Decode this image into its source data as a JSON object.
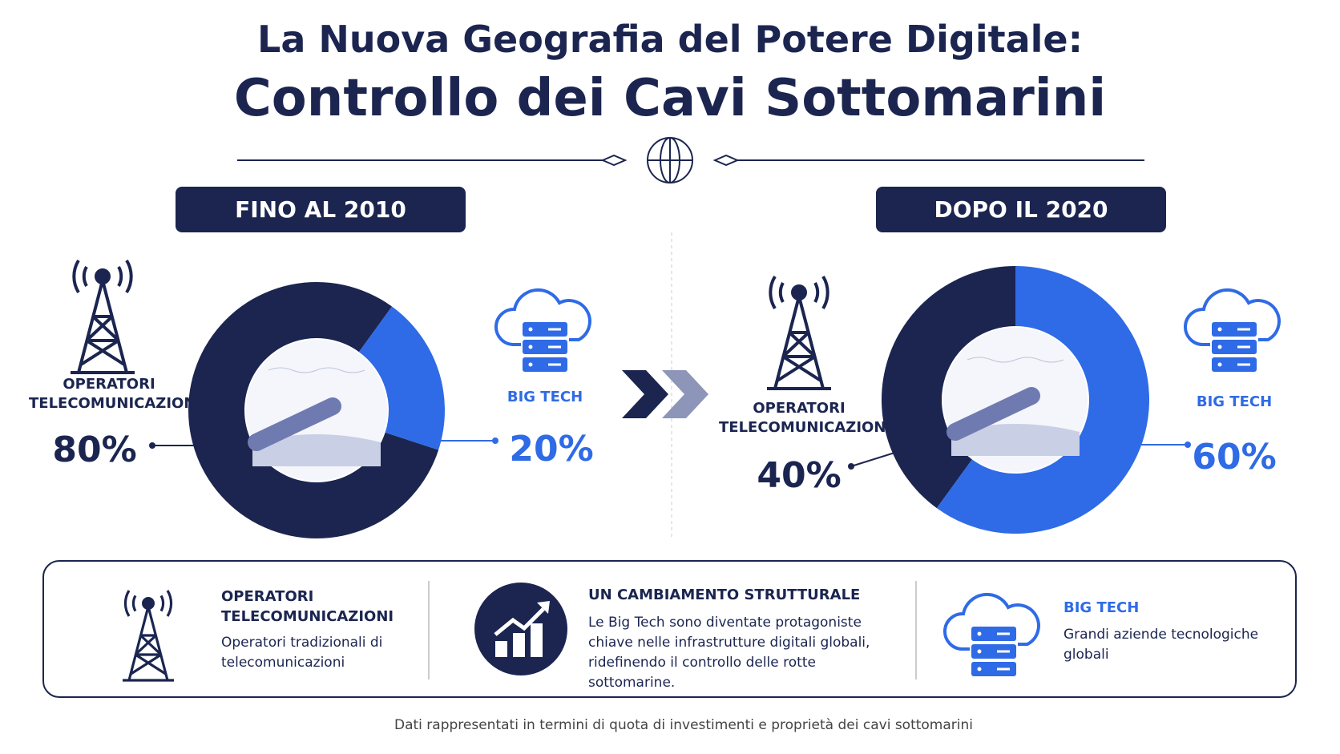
{
  "header": {
    "title": "La Nuova Geografia del Potere Digitale:",
    "subtitle": "Controllo dei Cavi Sottomarini"
  },
  "chart_data": [
    {
      "type": "pie",
      "title": "FINO AL 2010",
      "categories": [
        "OPERATORI TELECOMUNICAZIONI",
        "BIG TECH"
      ],
      "values": [
        80,
        20
      ],
      "value_labels": [
        "80%",
        "20%"
      ],
      "colors": [
        "#1b2550",
        "#2f6be6"
      ]
    },
    {
      "type": "pie",
      "title": "DOPO IL 2020",
      "categories": [
        "OPERATORI TELECOMUNICAZIONI",
        "BIG TECH"
      ],
      "values": [
        40,
        60
      ],
      "value_labels": [
        "40%",
        "60%"
      ],
      "colors": [
        "#1b2550",
        "#2f6be6"
      ]
    }
  ],
  "panel": {
    "items": [
      {
        "title": "OPERATORI TELECOMUNICAZIONI",
        "text": "Operatori tradizionali di telecomunicazioni"
      },
      {
        "title": "UN CAMBIAMENTO STRUTTURALE",
        "text": "Le Big Tech sono diventate protagoniste chiave nelle infrastrutture digitali globali, ridefinendo il controllo delle rotte sottomarine."
      },
      {
        "title": "BIG TECH",
        "text": "Grandi aziende tecnologiche globali"
      }
    ]
  },
  "footer": "Dati rappresentati in termini di quota di investimenti e proprietà dei cavi sottomarini"
}
